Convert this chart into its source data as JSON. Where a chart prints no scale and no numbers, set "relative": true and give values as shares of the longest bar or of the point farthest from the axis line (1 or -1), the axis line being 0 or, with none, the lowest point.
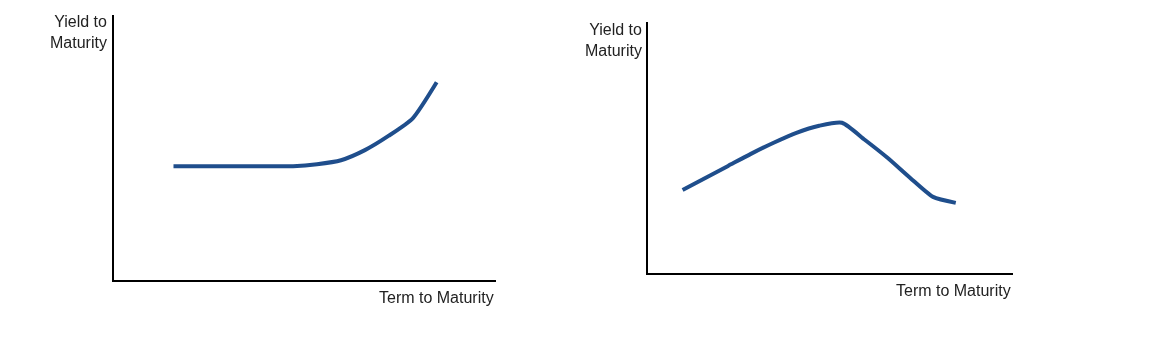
{
  "chart_data": [
    {
      "type": "line",
      "relative": true,
      "xlabel": "Term to Maturity",
      "ylabel": "Yield to\nMaturity",
      "categories": [
        null,
        null,
        null,
        null,
        null,
        null,
        null,
        null,
        null,
        null,
        null,
        null,
        null,
        null,
        null,
        null
      ],
      "series": [
        {
          "color": "#1f4e8c",
          "values": [
            null,
            null,
            0.576,
            0.576,
            0.576,
            0.576,
            0.576,
            0.576,
            0.586,
            0.606,
            0.657,
            0.73,
            0.818,
            1,
            null,
            null
          ]
        }
      ],
      "marker": "none",
      "line_style": "solid"
    },
    {
      "type": "line",
      "relative": true,
      "xlabel": "Term to Maturity",
      "ylabel": "Yield to\nMaturity",
      "categories": [
        null,
        null,
        null,
        null,
        null,
        null,
        null,
        null,
        null,
        null,
        null,
        null,
        null,
        null,
        null,
        null
      ],
      "series": [
        {
          "color": "#1f4e8c",
          "values": [
            null,
            0.553,
            0.633,
            0.713,
            0.793,
            0.867,
            0.933,
            0.98,
            1,
            0.887,
            0.767,
            0.633,
            0.507,
            0.467,
            null,
            null
          ]
        }
      ],
      "marker": "none",
      "line_style": "solid"
    }
  ]
}
